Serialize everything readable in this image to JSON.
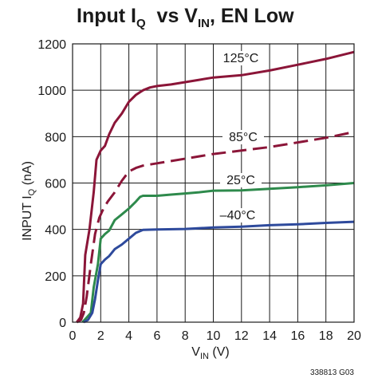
{
  "chart_data": {
    "type": "line",
    "title": {
      "main": "Input I",
      "sub": "Q",
      "rest": "  vs V",
      "sub2": "IN",
      "tail": ", EN Low"
    },
    "xlabel": {
      "main": "V",
      "sub": "IN",
      "rest": " (V)"
    },
    "ylabel": {
      "main": "INPUT I",
      "sub": "Q",
      "rest": " (nA)"
    },
    "xlim": [
      0,
      20
    ],
    "ylim": [
      0,
      1200
    ],
    "xticks": [
      0,
      2,
      4,
      6,
      8,
      10,
      12,
      14,
      16,
      18,
      20
    ],
    "yticks": [
      0,
      200,
      400,
      600,
      800,
      1000,
      1200
    ],
    "grid": true,
    "figure_id": "338813 G03",
    "series": [
      {
        "name": "125°C",
        "color": "#8b1538",
        "dash": "solid",
        "points": [
          [
            0.3,
            0
          ],
          [
            0.55,
            20
          ],
          [
            0.75,
            80
          ],
          [
            0.9,
            290
          ],
          [
            1.2,
            400
          ],
          [
            1.5,
            560
          ],
          [
            1.7,
            700
          ],
          [
            2.0,
            740
          ],
          [
            2.3,
            760
          ],
          [
            2.6,
            810
          ],
          [
            3.0,
            860
          ],
          [
            3.5,
            900
          ],
          [
            4.0,
            950
          ],
          [
            4.5,
            980
          ],
          [
            5.0,
            1000
          ],
          [
            5.5,
            1012
          ],
          [
            6.0,
            1018
          ],
          [
            7.0,
            1025
          ],
          [
            8.0,
            1035
          ],
          [
            9.0,
            1045
          ],
          [
            10.0,
            1055
          ],
          [
            12.0,
            1065
          ],
          [
            14.0,
            1085
          ],
          [
            16.0,
            1110
          ],
          [
            18.0,
            1135
          ],
          [
            20.0,
            1165
          ]
        ]
      },
      {
        "name": "85°C",
        "color": "#8b1538",
        "dash": "dashed",
        "points": [
          [
            0.3,
            0
          ],
          [
            0.6,
            10
          ],
          [
            0.8,
            40
          ],
          [
            1.0,
            110
          ],
          [
            1.3,
            250
          ],
          [
            1.6,
            380
          ],
          [
            1.9,
            450
          ],
          [
            2.2,
            490
          ],
          [
            2.5,
            520
          ],
          [
            3.0,
            560
          ],
          [
            3.5,
            610
          ],
          [
            4.0,
            650
          ],
          [
            4.5,
            665
          ],
          [
            5.0,
            675
          ],
          [
            6.0,
            685
          ],
          [
            8.0,
            705
          ],
          [
            10.0,
            725
          ],
          [
            12.0,
            740
          ],
          [
            14.0,
            755
          ],
          [
            16.0,
            775
          ],
          [
            18.0,
            795
          ],
          [
            20.0,
            820
          ]
        ]
      },
      {
        "name": "25°C",
        "color": "#2e8a4c",
        "dash": "solid",
        "points": [
          [
            0.7,
            0
          ],
          [
            1.0,
            20
          ],
          [
            1.3,
            40
          ],
          [
            1.5,
            150
          ],
          [
            1.8,
            250
          ],
          [
            2.0,
            360
          ],
          [
            2.3,
            380
          ],
          [
            2.6,
            395
          ],
          [
            3.0,
            440
          ],
          [
            3.5,
            465
          ],
          [
            4.0,
            490
          ],
          [
            4.5,
            520
          ],
          [
            4.8,
            540
          ],
          [
            5.0,
            545
          ],
          [
            6.0,
            545
          ],
          [
            7.0,
            550
          ],
          [
            8.0,
            555
          ],
          [
            9.0,
            560
          ],
          [
            10.0,
            567
          ],
          [
            12.0,
            568
          ],
          [
            14.0,
            575
          ],
          [
            16.0,
            582
          ],
          [
            18.0,
            590
          ],
          [
            20.0,
            600
          ]
        ]
      },
      {
        "name": "–40°C",
        "color": "#2e4a9c",
        "dash": "solid",
        "points": [
          [
            0.8,
            0
          ],
          [
            1.1,
            10
          ],
          [
            1.4,
            40
          ],
          [
            1.6,
            100
          ],
          [
            1.8,
            180
          ],
          [
            2.0,
            250
          ],
          [
            2.3,
            270
          ],
          [
            2.6,
            285
          ],
          [
            3.0,
            315
          ],
          [
            3.5,
            335
          ],
          [
            4.0,
            360
          ],
          [
            4.5,
            385
          ],
          [
            5.0,
            398
          ],
          [
            6.0,
            400
          ],
          [
            8.0,
            402
          ],
          [
            10.0,
            408
          ],
          [
            12.0,
            412
          ],
          [
            14.0,
            418
          ],
          [
            16.0,
            422
          ],
          [
            18.0,
            428
          ],
          [
            20.0,
            433
          ]
        ]
      }
    ]
  }
}
